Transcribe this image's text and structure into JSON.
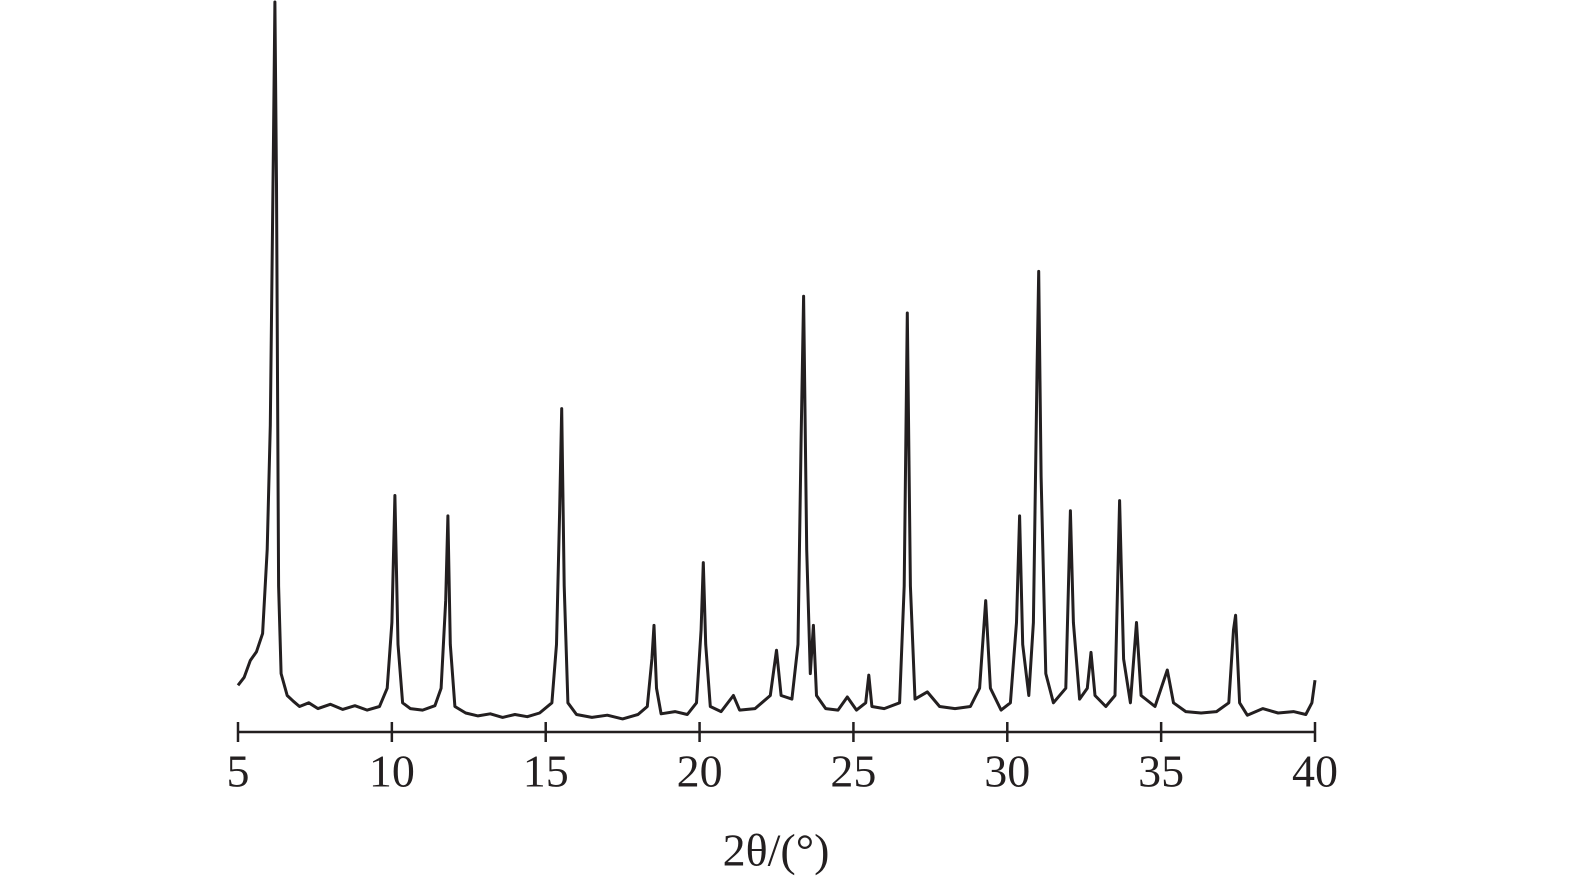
{
  "chart_data": {
    "type": "line",
    "xlabel": "2θ/(°)",
    "color": "#231f20",
    "xlim": [
      5,
      40
    ],
    "xticks": [
      5,
      10,
      15,
      20,
      25,
      30,
      35,
      40
    ],
    "ylim": [
      0,
      100
    ],
    "x": [
      5.0,
      5.2,
      5.4,
      5.6,
      5.8,
      5.95,
      6.05,
      6.15,
      6.2,
      6.25,
      6.32,
      6.4,
      6.6,
      6.8,
      7.0,
      7.3,
      7.6,
      8.0,
      8.4,
      8.8,
      9.2,
      9.6,
      9.85,
      10.0,
      10.1,
      10.2,
      10.35,
      10.6,
      11.0,
      11.4,
      11.6,
      11.75,
      11.82,
      11.9,
      12.05,
      12.4,
      12.8,
      13.2,
      13.6,
      14.0,
      14.4,
      14.8,
      15.2,
      15.35,
      15.45,
      15.52,
      15.6,
      15.72,
      16.0,
      16.5,
      17.0,
      17.5,
      18.0,
      18.3,
      18.45,
      18.52,
      18.6,
      18.75,
      19.2,
      19.6,
      19.9,
      20.05,
      20.12,
      20.2,
      20.35,
      20.7,
      21.1,
      21.3,
      21.8,
      22.3,
      22.5,
      22.65,
      23.0,
      23.2,
      23.3,
      23.38,
      23.48,
      23.6,
      23.7,
      23.8,
      24.1,
      24.5,
      24.8,
      25.1,
      25.4,
      25.5,
      25.6,
      26.0,
      26.5,
      26.65,
      26.75,
      26.85,
      27.0,
      27.4,
      27.8,
      28.3,
      28.8,
      29.1,
      29.3,
      29.45,
      29.8,
      30.1,
      30.3,
      30.4,
      30.5,
      30.7,
      30.85,
      30.97,
      31.02,
      31.1,
      31.25,
      31.5,
      31.9,
      32.05,
      32.15,
      32.35,
      32.6,
      32.72,
      32.85,
      33.2,
      33.5,
      33.65,
      33.78,
      34.0,
      34.2,
      34.35,
      34.8,
      35.2,
      35.4,
      35.8,
      36.3,
      36.8,
      37.2,
      37.35,
      37.42,
      37.55,
      37.8,
      38.3,
      38.8,
      39.3,
      39.7,
      39.9,
      40.0
    ],
    "values": [
      6.4,
      7.5,
      9.8,
      11,
      13.5,
      25,
      42,
      80,
      100,
      75,
      20,
      8,
      5,
      4.2,
      3.5,
      4,
      3.2,
      3.8,
      3.1,
      3.6,
      3.0,
      3.5,
      6,
      15,
      32.4,
      12,
      4,
      3.2,
      3.0,
      3.6,
      6,
      18,
      29.6,
      12,
      3.5,
      2.6,
      2.2,
      2.5,
      2.0,
      2.4,
      2.1,
      2.6,
      4,
      12,
      30,
      44.3,
      20,
      4,
      2.4,
      2.0,
      2.3,
      1.8,
      2.4,
      3.5,
      10,
      14.6,
      6,
      2.5,
      2.8,
      2.4,
      4,
      14,
      23.2,
      12,
      3.5,
      2.8,
      5,
      3,
      3.2,
      5,
      11.2,
      5,
      4.5,
      12,
      40,
      59.7,
      25,
      8,
      14.6,
      5,
      3.2,
      3.0,
      4.8,
      3,
      4,
      7.8,
      3.5,
      3.2,
      4,
      20,
      57.4,
      20,
      4.5,
      5.5,
      3.5,
      3.2,
      3.5,
      6,
      18,
      6,
      3,
      4,
      15,
      29.6,
      12,
      5,
      15,
      50,
      63.1,
      35,
      8,
      4,
      6,
      30.3,
      15,
      4.5,
      6,
      10.9,
      5,
      3.5,
      5,
      31.7,
      10,
      4,
      15,
      5,
      3.5,
      8.5,
      4,
      2.8,
      2.6,
      2.8,
      4,
      14,
      16,
      4,
      2.3,
      3.2,
      2.6,
      2.8,
      2.4,
      4,
      7.1
    ]
  }
}
